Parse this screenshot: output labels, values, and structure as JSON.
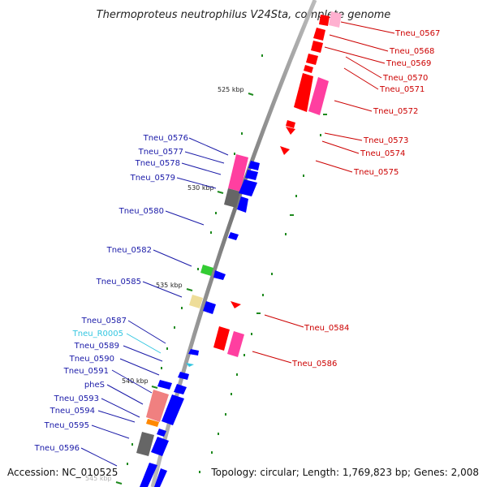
{
  "title": "Thermoproteus neutrophilus V24Sta, complete genome",
  "footer": {
    "accession": "Accession: NC_010525",
    "summary": "Topology: circular; Length: 1,769,823 bp; Genes: 2,008"
  },
  "kbp_labels": [
    "525 kbp",
    "530 kbp",
    "535 kbp",
    "540 kbp",
    "545 kbp"
  ],
  "right_genes": [
    "Tneu_0567",
    "Tneu_0568",
    "Tneu_0569",
    "Tneu_0570",
    "Tneu_0571",
    "Tneu_0572",
    "Tneu_0573",
    "Tneu_0574",
    "Tneu_0575",
    "Tneu_0584",
    "Tneu_0586"
  ],
  "left_genes": [
    "Tneu_0576",
    "Tneu_0577",
    "Tneu_0578",
    "Tneu_0579",
    "Tneu_0580",
    "Tneu_0582",
    "Tneu_0585",
    "Tneu_0587",
    "Tneu_R0005",
    "Tneu_0589",
    "Tneu_0590",
    "Tneu_0591",
    "pheS",
    "Tneu_0593",
    "Tneu_0594",
    "Tneu_0595",
    "Tneu_0596"
  ],
  "colors": {
    "reverse_strand_label": "#cc0000",
    "forward_strand_label": "#1a1aa8",
    "rna_label": "#33c6e0",
    "gene_red": "#ff0000",
    "gene_pink": "#ff3fa0",
    "gene_blue": "#0000ff",
    "gene_green": "#33cc33",
    "gene_grey": "#666666",
    "gene_tan": "#eedd99",
    "gene_orange": "#ff8800",
    "gene_salmon": "#f08080",
    "tick": "#1e8a1e",
    "backbone": "#888888"
  }
}
